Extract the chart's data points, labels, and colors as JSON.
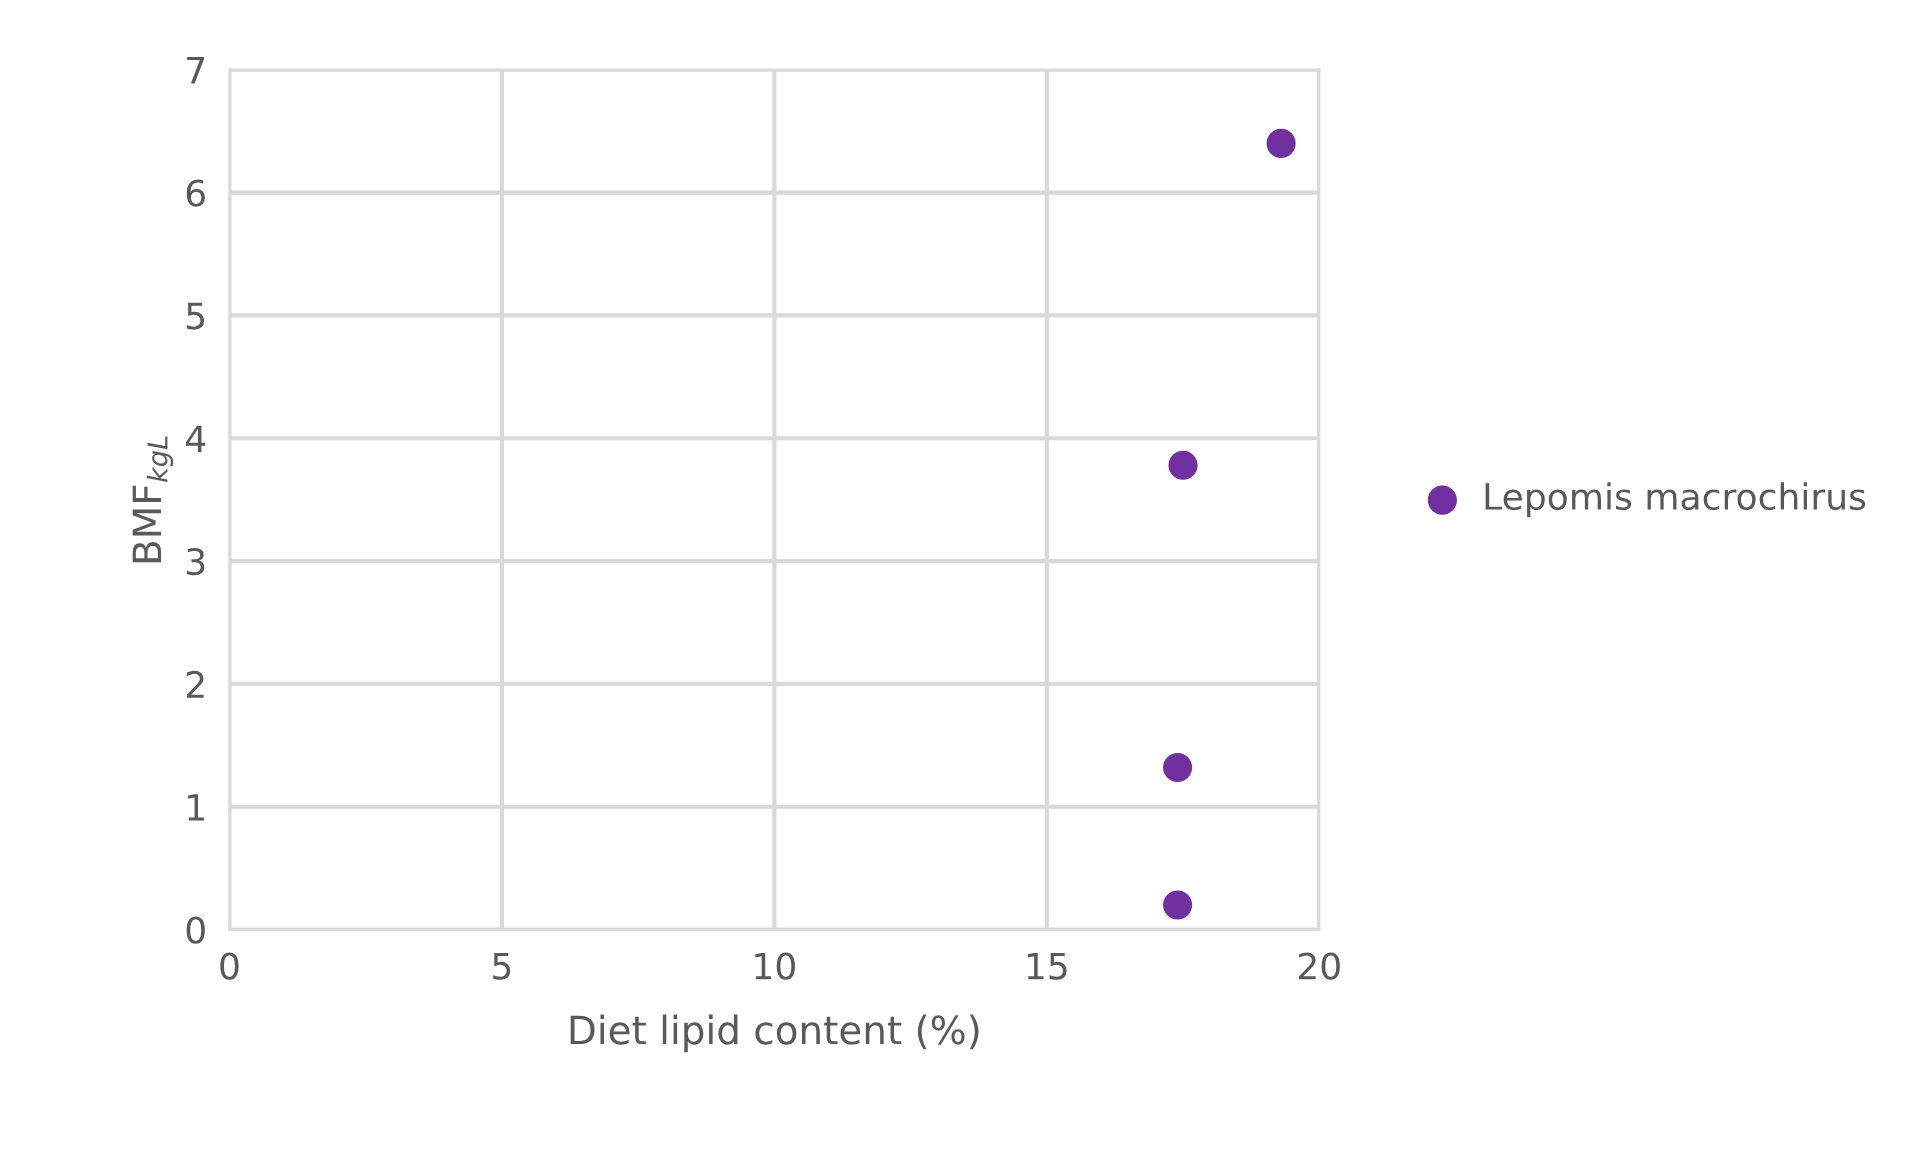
{
  "chart_data": {
    "type": "scatter",
    "xlabel": "Diet lipid content (%)",
    "ylabel": "BMF$_{kgL}$",
    "series": [
      {
        "name": "Lepomis macrochirus",
        "color": "#7030a0",
        "x": [
          19.3,
          17.5,
          17.4,
          17.4
        ],
        "values": [
          6.4,
          3.78,
          1.32,
          0.2
        ]
      }
    ],
    "xlim": [
      0,
      20
    ],
    "xticks": [
      0,
      5,
      10,
      15,
      20
    ],
    "ylim": [
      0,
      7
    ],
    "yticks": [
      0,
      1,
      2,
      3,
      4,
      5,
      6,
      7
    ],
    "grid": true,
    "legend": "right",
    "marker": "circle"
  }
}
